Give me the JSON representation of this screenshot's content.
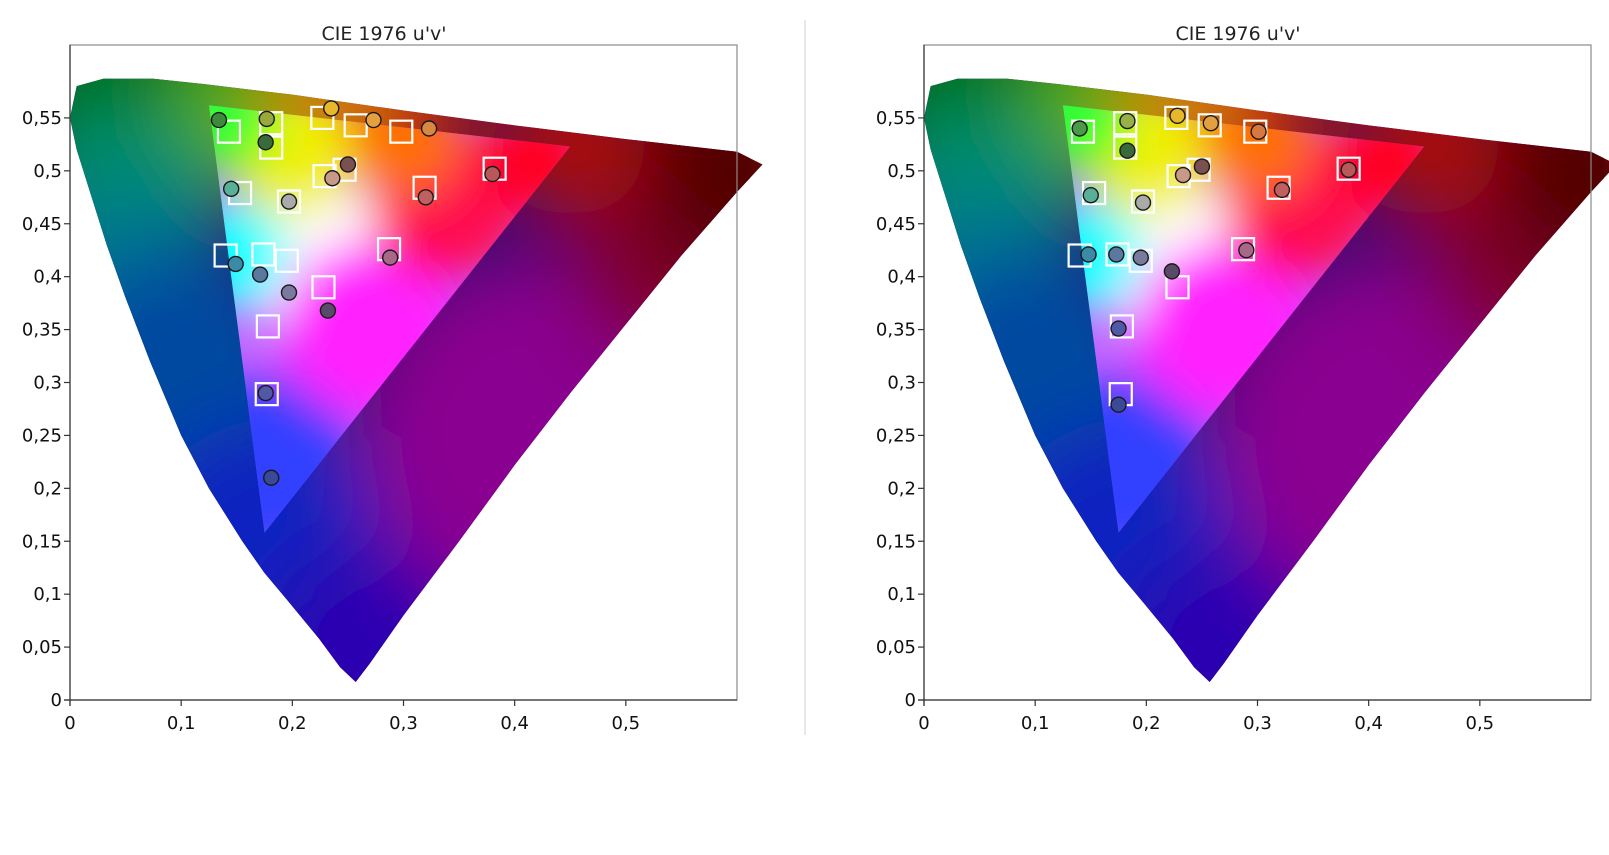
{
  "colors": {
    "background": "#ffffff",
    "frame": "#8a8a8a",
    "target_stroke": "#ffffff",
    "point_stroke": "#1a1a1a"
  },
  "chart_data": [
    {
      "type": "scatter",
      "title": "CIE 1976 u'v'",
      "xlabel": "",
      "ylabel": "",
      "xlim": [
        0,
        0.6
      ],
      "ylim": [
        0,
        0.6
      ],
      "x_ticks": [
        "0",
        "0,1",
        "0,2",
        "0,3",
        "0,4",
        "0,5"
      ],
      "y_ticks": [
        "0",
        "0,05",
        "0,1",
        "0,15",
        "0,2",
        "0,25",
        "0,3",
        "0,35",
        "0,4",
        "0,45",
        "0,5",
        "0,55"
      ],
      "grid": false,
      "gamut_triangle": [
        [
          0.125,
          0.562
        ],
        [
          0.45,
          0.523
        ],
        [
          0.175,
          0.158
        ]
      ],
      "targets": [
        [
          0.143,
          0.537
        ],
        [
          0.181,
          0.545
        ],
        [
          0.181,
          0.522
        ],
        [
          0.227,
          0.55
        ],
        [
          0.257,
          0.543
        ],
        [
          0.298,
          0.537
        ],
        [
          0.382,
          0.502
        ],
        [
          0.319,
          0.484
        ],
        [
          0.247,
          0.501
        ],
        [
          0.229,
          0.495
        ],
        [
          0.153,
          0.479
        ],
        [
          0.197,
          0.471
        ],
        [
          0.14,
          0.42
        ],
        [
          0.174,
          0.421
        ],
        [
          0.195,
          0.415
        ],
        [
          0.287,
          0.426
        ],
        [
          0.228,
          0.39
        ],
        [
          0.178,
          0.353
        ],
        [
          0.177,
          0.289
        ]
      ],
      "points": [
        {
          "u": 0.134,
          "v": 0.548,
          "color": "#3c8a3c"
        },
        {
          "u": 0.177,
          "v": 0.549,
          "color": "#98a83c"
        },
        {
          "u": 0.176,
          "v": 0.527,
          "color": "#3a6a3a"
        },
        {
          "u": 0.235,
          "v": 0.559,
          "color": "#e8b82a"
        },
        {
          "u": 0.273,
          "v": 0.548,
          "color": "#e4a040"
        },
        {
          "u": 0.323,
          "v": 0.54,
          "color": "#d88840"
        },
        {
          "u": 0.38,
          "v": 0.497,
          "color": "#b85858"
        },
        {
          "u": 0.32,
          "v": 0.475,
          "color": "#c06060"
        },
        {
          "u": 0.25,
          "v": 0.506,
          "color": "#7a5050"
        },
        {
          "u": 0.236,
          "v": 0.493,
          "color": "#c89888"
        },
        {
          "u": 0.145,
          "v": 0.483,
          "color": "#58b098"
        },
        {
          "u": 0.197,
          "v": 0.471,
          "color": "#aaaaaa"
        },
        {
          "u": 0.149,
          "v": 0.412,
          "color": "#3a8aa8"
        },
        {
          "u": 0.171,
          "v": 0.402,
          "color": "#5a78a0"
        },
        {
          "u": 0.197,
          "v": 0.385,
          "color": "#7a7aa0"
        },
        {
          "u": 0.288,
          "v": 0.418,
          "color": "#a86888"
        },
        {
          "u": 0.232,
          "v": 0.368,
          "color": "#5a4a6a"
        },
        {
          "u": 0.176,
          "v": 0.29,
          "color": "#5058a8"
        },
        {
          "u": 0.181,
          "v": 0.21,
          "color": "#3a4a98"
        }
      ]
    },
    {
      "type": "scatter",
      "title": "CIE 1976 u'v'",
      "xlabel": "",
      "ylabel": "",
      "xlim": [
        0,
        0.6
      ],
      "ylim": [
        0,
        0.6
      ],
      "x_ticks": [
        "0",
        "0,1",
        "0,2",
        "0,3",
        "0,4",
        "0,5"
      ],
      "y_ticks": [
        "0",
        "0,05",
        "0,1",
        "0,15",
        "0,2",
        "0,25",
        "0,3",
        "0,35",
        "0,4",
        "0,45",
        "0,5",
        "0,55"
      ],
      "grid": false,
      "gamut_triangle": [
        [
          0.125,
          0.562
        ],
        [
          0.45,
          0.523
        ],
        [
          0.175,
          0.158
        ]
      ],
      "targets": [
        [
          0.143,
          0.537
        ],
        [
          0.181,
          0.545
        ],
        [
          0.181,
          0.522
        ],
        [
          0.227,
          0.55
        ],
        [
          0.257,
          0.543
        ],
        [
          0.298,
          0.537
        ],
        [
          0.382,
          0.502
        ],
        [
          0.319,
          0.484
        ],
        [
          0.247,
          0.501
        ],
        [
          0.229,
          0.495
        ],
        [
          0.153,
          0.479
        ],
        [
          0.197,
          0.471
        ],
        [
          0.14,
          0.42
        ],
        [
          0.174,
          0.421
        ],
        [
          0.195,
          0.415
        ],
        [
          0.287,
          0.426
        ],
        [
          0.228,
          0.39
        ],
        [
          0.178,
          0.353
        ],
        [
          0.177,
          0.289
        ]
      ],
      "points": [
        {
          "u": 0.14,
          "v": 0.54,
          "color": "#4a9a4a"
        },
        {
          "u": 0.183,
          "v": 0.547,
          "color": "#98b04a"
        },
        {
          "u": 0.183,
          "v": 0.519,
          "color": "#3a6a3a"
        },
        {
          "u": 0.228,
          "v": 0.552,
          "color": "#e8b82a"
        },
        {
          "u": 0.258,
          "v": 0.545,
          "color": "#e4a040"
        },
        {
          "u": 0.301,
          "v": 0.537,
          "color": "#d87840"
        },
        {
          "u": 0.382,
          "v": 0.501,
          "color": "#b85858"
        },
        {
          "u": 0.322,
          "v": 0.482,
          "color": "#c06060"
        },
        {
          "u": 0.25,
          "v": 0.504,
          "color": "#7a5050"
        },
        {
          "u": 0.233,
          "v": 0.496,
          "color": "#c89888"
        },
        {
          "u": 0.15,
          "v": 0.477,
          "color": "#58b098"
        },
        {
          "u": 0.197,
          "v": 0.47,
          "color": "#aaaaaa"
        },
        {
          "u": 0.148,
          "v": 0.421,
          "color": "#3a8aa8"
        },
        {
          "u": 0.173,
          "v": 0.421,
          "color": "#5a78a0"
        },
        {
          "u": 0.195,
          "v": 0.418,
          "color": "#7a7aa0"
        },
        {
          "u": 0.29,
          "v": 0.425,
          "color": "#a86888"
        },
        {
          "u": 0.223,
          "v": 0.405,
          "color": "#5a4a6a"
        },
        {
          "u": 0.175,
          "v": 0.351,
          "color": "#5058a8"
        },
        {
          "u": 0.175,
          "v": 0.279,
          "color": "#3a4a98"
        }
      ]
    }
  ]
}
